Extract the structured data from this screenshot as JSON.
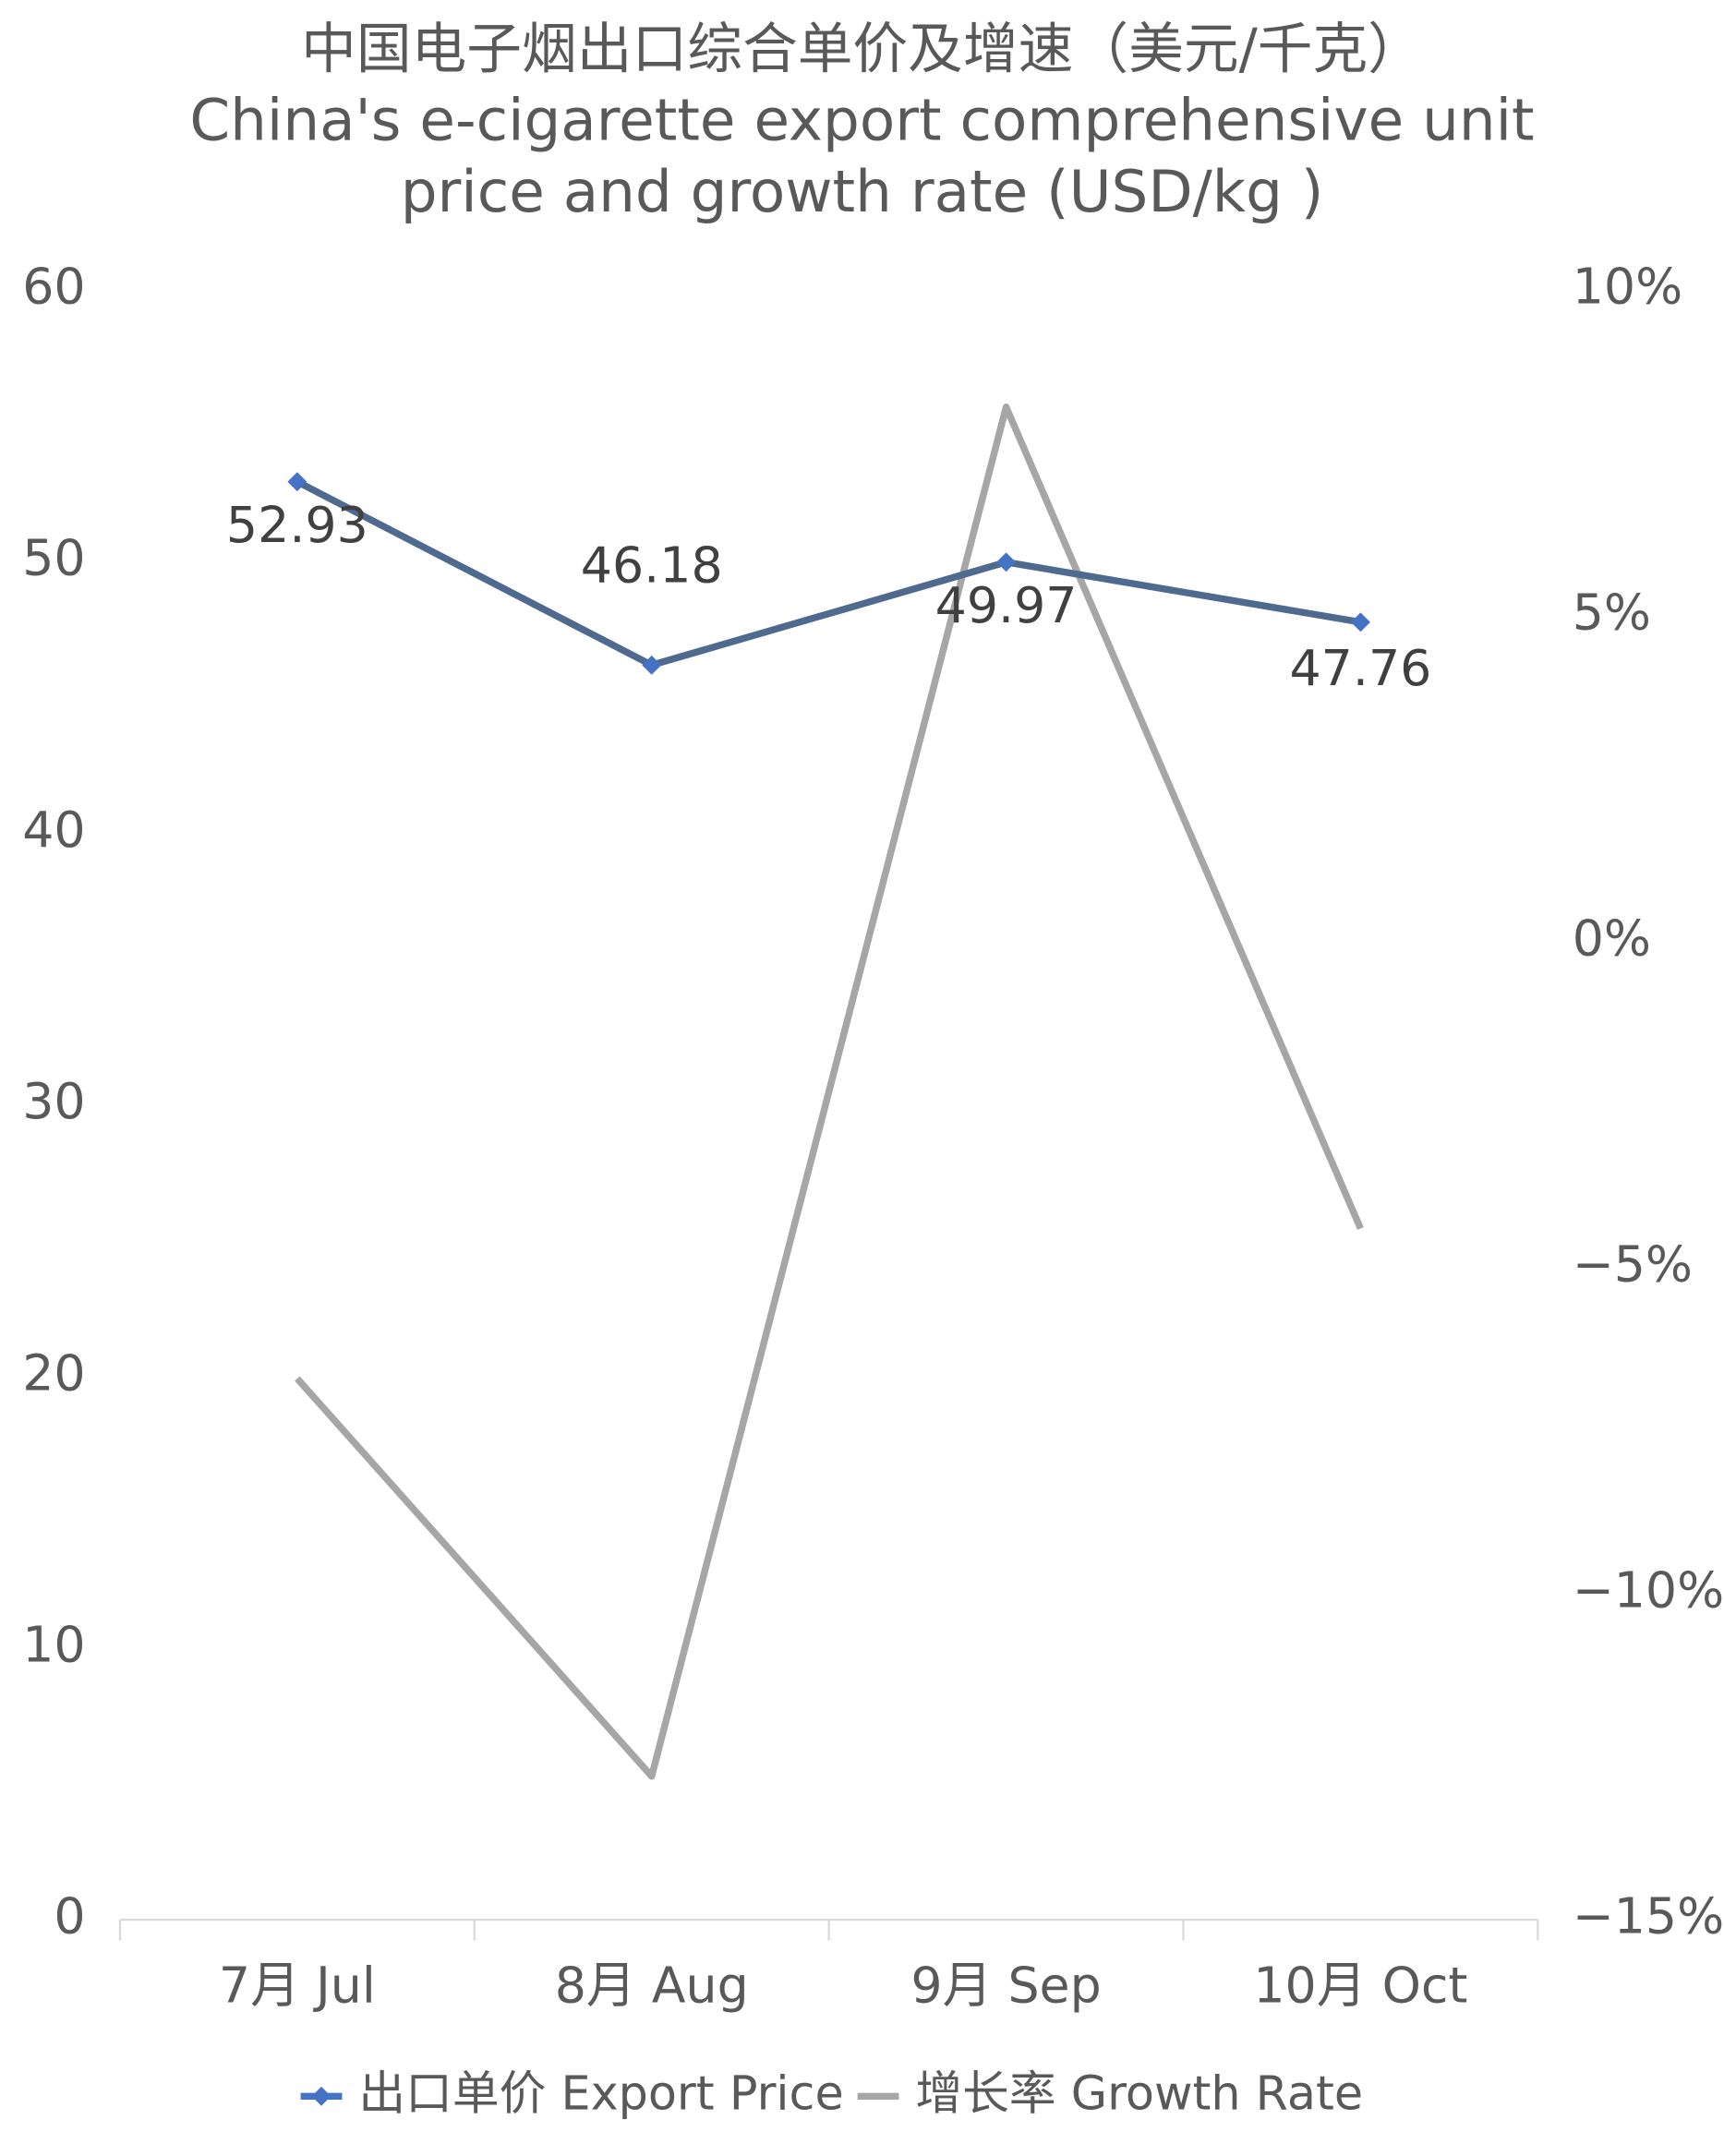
{
  "chart_data": {
    "type": "line",
    "title": [
      "中国电子烟出口综合单价及增速（美元/千克）",
      "China's e-cigarette export comprehensive unit",
      "price and growth rate (USD/kg )"
    ],
    "categories": [
      "7月 Jul",
      "8月 Aug",
      "9月 Sep",
      "10月 Oct"
    ],
    "series": [
      {
        "name": "出口单价 Export Price",
        "color": "#4f6a8f",
        "marker_color": "#4472c4",
        "values": [
          52.93,
          46.18,
          49.97,
          47.76
        ],
        "data_labels": true
      },
      {
        "name": "增长率 Growth Rate",
        "color": "#a6a6a6",
        "axis": "y2",
        "values": [
          -6.7,
          -12.8,
          8.2,
          -4.4
        ]
      }
    ],
    "ylim": [
      0,
      60
    ],
    "yticks": [
      0,
      10,
      20,
      30,
      40,
      50,
      60
    ],
    "y2lim": [
      -15,
      10
    ],
    "y2ticks": [
      {
        "value": -15,
        "label": "−15%"
      },
      {
        "value": -10,
        "label": "−10%"
      },
      {
        "value": -5,
        "label": "−5%"
      },
      {
        "value": 0,
        "label": "0%"
      },
      {
        "value": 5,
        "label": "5%"
      },
      {
        "value": 10,
        "label": "10%"
      }
    ],
    "grid": false,
    "legend": "bottom"
  }
}
